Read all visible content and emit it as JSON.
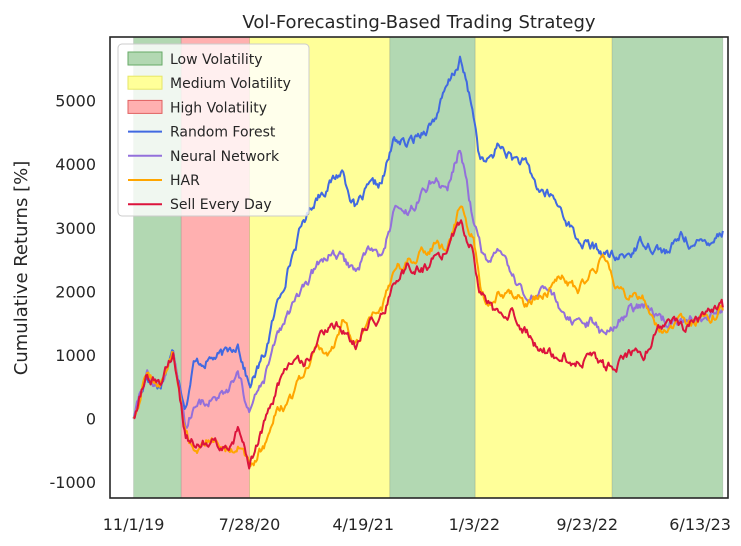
{
  "chart_data": {
    "type": "line",
    "title": "Vol-Forecasting-Based Trading Strategy",
    "xlabel": "",
    "ylabel": "Cumulative Returns [%]",
    "ylim": [
      -1250,
      6000
    ],
    "yticks": [
      -1000,
      0,
      1000,
      2000,
      3000,
      4000,
      5000
    ],
    "xticks": [
      "11/1/19",
      "7/28/20",
      "4/19/21",
      "1/3/22",
      "9/23/22",
      "6/13/23"
    ],
    "xlim": [
      "2019-09-07",
      "2023-08-17"
    ],
    "grid": false,
    "legend_position": "top-left",
    "regions": [
      {
        "label": "Low Volatility",
        "start": "2019-11-01",
        "end": "2020-02-20",
        "color": "#b2d8b2"
      },
      {
        "label": "High Volatility",
        "start": "2020-02-20",
        "end": "2020-07-28",
        "color": "#ffb0b0"
      },
      {
        "label": "Medium Volatility",
        "start": "2020-07-28",
        "end": "2021-06-20",
        "color": "#ffff99"
      },
      {
        "label": "Low Volatility",
        "start": "2021-06-20",
        "end": "2022-01-05",
        "color": "#b2d8b2"
      },
      {
        "label": "Medium Volatility",
        "start": "2022-01-05",
        "end": "2022-11-20",
        "color": "#ffff99"
      },
      {
        "label": "Low Volatility",
        "start": "2022-11-20",
        "end": "2023-08-05",
        "color": "#b2d8b2"
      }
    ],
    "legend": [
      {
        "label": "Low Volatility",
        "kind": "patch",
        "color": "#b2d8b2",
        "edge": "#66aa66"
      },
      {
        "label": "Medium Volatility",
        "kind": "patch",
        "color": "#ffff99",
        "edge": "#e6e666"
      },
      {
        "label": "High Volatility",
        "kind": "patch",
        "color": "#ffb0b0",
        "edge": "#e06060"
      },
      {
        "label": "Random Forest",
        "kind": "line",
        "color": "#4169e1"
      },
      {
        "label": "Neural Network",
        "kind": "line",
        "color": "#9370db"
      },
      {
        "label": "HAR",
        "kind": "line",
        "color": "#ffa500"
      },
      {
        "label": "Sell Every Day",
        "kind": "line",
        "color": "#dc143c"
      }
    ],
    "series": [
      {
        "name": "Random Forest",
        "color": "#4169e1",
        "points": [
          [
            "2019-11-01",
            0
          ],
          [
            "2019-12-01",
            700
          ],
          [
            "2020-01-01",
            500
          ],
          [
            "2020-02-01",
            1050
          ],
          [
            "2020-03-01",
            200
          ],
          [
            "2020-03-20",
            850
          ],
          [
            "2020-05-01",
            950
          ],
          [
            "2020-06-01",
            1000
          ],
          [
            "2020-07-01",
            1200
          ],
          [
            "2020-07-28",
            500
          ],
          [
            "2020-09-01",
            1000
          ],
          [
            "2020-10-01",
            1800
          ],
          [
            "2020-11-01",
            2500
          ],
          [
            "2020-12-01",
            3100
          ],
          [
            "2021-01-01",
            3500
          ],
          [
            "2021-02-01",
            3700
          ],
          [
            "2021-03-01",
            3900
          ],
          [
            "2021-04-01",
            3300
          ],
          [
            "2021-05-01",
            3600
          ],
          [
            "2021-06-01",
            3700
          ],
          [
            "2021-07-01",
            4400
          ],
          [
            "2021-08-01",
            4300
          ],
          [
            "2021-09-01",
            4500
          ],
          [
            "2021-10-01",
            4700
          ],
          [
            "2021-11-01",
            5200
          ],
          [
            "2021-12-01",
            5650
          ],
          [
            "2022-01-01",
            4800
          ],
          [
            "2022-01-15",
            4100
          ],
          [
            "2022-02-01",
            4000
          ],
          [
            "2022-03-01",
            4300
          ],
          [
            "2022-04-01",
            4100
          ],
          [
            "2022-05-01",
            4000
          ],
          [
            "2022-06-01",
            3600
          ],
          [
            "2022-07-01",
            3500
          ],
          [
            "2022-08-01",
            3200
          ],
          [
            "2022-09-01",
            2800
          ],
          [
            "2022-10-01",
            2700
          ],
          [
            "2022-11-01",
            2600
          ],
          [
            "2022-12-01",
            2500
          ],
          [
            "2023-01-01",
            2600
          ],
          [
            "2023-02-01",
            2800
          ],
          [
            "2023-03-01",
            2700
          ],
          [
            "2023-04-01",
            2600
          ],
          [
            "2023-05-01",
            2900
          ],
          [
            "2023-06-01",
            2700
          ],
          [
            "2023-07-01",
            2800
          ],
          [
            "2023-08-05",
            2950
          ]
        ]
      },
      {
        "name": "Neural Network",
        "color": "#9370db",
        "points": [
          [
            "2019-11-01",
            0
          ],
          [
            "2019-12-01",
            700
          ],
          [
            "2020-01-01",
            500
          ],
          [
            "2020-02-01",
            1050
          ],
          [
            "2020-03-01",
            -100
          ],
          [
            "2020-03-20",
            200
          ],
          [
            "2020-05-01",
            300
          ],
          [
            "2020-06-01",
            350
          ],
          [
            "2020-07-01",
            650
          ],
          [
            "2020-07-28",
            100
          ],
          [
            "2020-09-01",
            600
          ],
          [
            "2020-10-01",
            1300
          ],
          [
            "2020-11-01",
            1700
          ],
          [
            "2020-12-01",
            2000
          ],
          [
            "2021-01-01",
            2400
          ],
          [
            "2021-02-01",
            2600
          ],
          [
            "2021-03-01",
            2500
          ],
          [
            "2021-04-01",
            2300
          ],
          [
            "2021-05-01",
            2700
          ],
          [
            "2021-06-01",
            2500
          ],
          [
            "2021-07-01",
            3300
          ],
          [
            "2021-08-01",
            3200
          ],
          [
            "2021-09-01",
            3500
          ],
          [
            "2021-10-01",
            3800
          ],
          [
            "2021-11-01",
            3600
          ],
          [
            "2021-12-01",
            4250
          ],
          [
            "2022-01-01",
            3100
          ],
          [
            "2022-02-01",
            2400
          ],
          [
            "2022-03-01",
            2600
          ],
          [
            "2022-04-01",
            2200
          ],
          [
            "2022-05-01",
            1900
          ],
          [
            "2022-06-01",
            1900
          ],
          [
            "2022-07-01",
            2000
          ],
          [
            "2022-08-01",
            1600
          ],
          [
            "2022-09-01",
            1400
          ],
          [
            "2022-10-01",
            1500
          ],
          [
            "2022-11-01",
            1300
          ],
          [
            "2022-12-01",
            1500
          ],
          [
            "2023-01-01",
            1700
          ],
          [
            "2023-02-01",
            1800
          ],
          [
            "2023-03-01",
            1600
          ],
          [
            "2023-04-01",
            1500
          ],
          [
            "2023-05-01",
            1500
          ],
          [
            "2023-06-01",
            1600
          ],
          [
            "2023-07-01",
            1600
          ],
          [
            "2023-08-05",
            1750
          ]
        ]
      },
      {
        "name": "HAR",
        "color": "#ffa500",
        "points": [
          [
            "2019-11-01",
            0
          ],
          [
            "2019-12-01",
            700
          ],
          [
            "2020-01-01",
            500
          ],
          [
            "2020-02-01",
            1050
          ],
          [
            "2020-03-01",
            -300
          ],
          [
            "2020-03-20",
            -500
          ],
          [
            "2020-05-01",
            -300
          ],
          [
            "2020-06-01",
            -500
          ],
          [
            "2020-07-01",
            -400
          ],
          [
            "2020-07-28",
            -800
          ],
          [
            "2020-09-01",
            -400
          ],
          [
            "2020-10-01",
            100
          ],
          [
            "2020-11-01",
            300
          ],
          [
            "2020-12-01",
            700
          ],
          [
            "2021-01-01",
            1100
          ],
          [
            "2021-02-01",
            1000
          ],
          [
            "2021-03-01",
            1500
          ],
          [
            "2021-04-01",
            1200
          ],
          [
            "2021-05-01",
            1600
          ],
          [
            "2021-06-01",
            1700
          ],
          [
            "2021-07-01",
            2300
          ],
          [
            "2021-08-01",
            2500
          ],
          [
            "2021-09-01",
            2600
          ],
          [
            "2021-10-01",
            2700
          ],
          [
            "2021-11-01",
            2600
          ],
          [
            "2021-12-01",
            3350
          ],
          [
            "2022-01-01",
            2800
          ],
          [
            "2022-01-15",
            2100
          ],
          [
            "2022-02-01",
            1800
          ],
          [
            "2022-03-01",
            2000
          ],
          [
            "2022-04-01",
            2000
          ],
          [
            "2022-05-01",
            1800
          ],
          [
            "2022-06-01",
            1900
          ],
          [
            "2022-07-01",
            2100
          ],
          [
            "2022-08-01",
            2200
          ],
          [
            "2022-09-01",
            2000
          ],
          [
            "2022-10-01",
            2300
          ],
          [
            "2022-11-01",
            2500
          ],
          [
            "2022-12-01",
            2100
          ],
          [
            "2023-01-01",
            1900
          ],
          [
            "2023-02-01",
            1900
          ],
          [
            "2023-03-01",
            1500
          ],
          [
            "2023-04-01",
            1400
          ],
          [
            "2023-05-01",
            1500
          ],
          [
            "2023-06-01",
            1500
          ],
          [
            "2023-07-01",
            1600
          ],
          [
            "2023-08-05",
            1700
          ]
        ]
      },
      {
        "name": "Sell Every Day",
        "color": "#dc143c",
        "points": [
          [
            "2019-11-01",
            0
          ],
          [
            "2019-12-01",
            700
          ],
          [
            "2020-01-01",
            500
          ],
          [
            "2020-02-01",
            1050
          ],
          [
            "2020-03-01",
            -300
          ],
          [
            "2020-03-20",
            -400
          ],
          [
            "2020-05-01",
            -300
          ],
          [
            "2020-06-01",
            -500
          ],
          [
            "2020-07-01",
            -200
          ],
          [
            "2020-07-28",
            -700
          ],
          [
            "2020-09-01",
            -100
          ],
          [
            "2020-10-01",
            500
          ],
          [
            "2020-11-01",
            900
          ],
          [
            "2020-12-01",
            800
          ],
          [
            "2021-01-01",
            1200
          ],
          [
            "2021-02-01",
            1500
          ],
          [
            "2021-03-01",
            1400
          ],
          [
            "2021-04-01",
            1200
          ],
          [
            "2021-05-01",
            1500
          ],
          [
            "2021-06-01",
            1600
          ],
          [
            "2021-07-01",
            2100
          ],
          [
            "2021-08-01",
            2400
          ],
          [
            "2021-09-01",
            2300
          ],
          [
            "2021-10-01",
            2500
          ],
          [
            "2021-11-01",
            2600
          ],
          [
            "2021-12-01",
            3100
          ],
          [
            "2022-01-01",
            2600
          ],
          [
            "2022-01-15",
            2000
          ],
          [
            "2022-02-01",
            1800
          ],
          [
            "2022-03-01",
            1600
          ],
          [
            "2022-04-01",
            1700
          ],
          [
            "2022-05-01",
            1400
          ],
          [
            "2022-06-01",
            1100
          ],
          [
            "2022-07-01",
            1000
          ],
          [
            "2022-08-01",
            1000
          ],
          [
            "2022-09-01",
            900
          ],
          [
            "2022-10-01",
            1000
          ],
          [
            "2022-11-01",
            800
          ],
          [
            "2022-12-01",
            850
          ],
          [
            "2023-01-01",
            1000
          ],
          [
            "2023-02-01",
            1000
          ],
          [
            "2023-03-01",
            1300
          ],
          [
            "2023-04-01",
            1600
          ],
          [
            "2023-05-01",
            1400
          ],
          [
            "2023-06-01",
            1500
          ],
          [
            "2023-07-01",
            1600
          ],
          [
            "2023-08-05",
            1750
          ]
        ]
      }
    ]
  }
}
